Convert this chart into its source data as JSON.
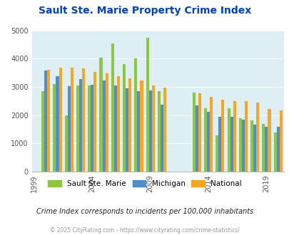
{
  "title": "Sault Ste. Marie Property Crime Index",
  "title_color": "#0044aa",
  "subtitle": "Crime Index corresponds to incidents per 100,000 inhabitants",
  "footer": "© 2025 CityRating.com - https://www.cityrating.com/crime-statistics/",
  "years": [
    2000,
    2001,
    2002,
    2003,
    2004,
    2005,
    2006,
    2007,
    2008,
    2009,
    2010,
    2013,
    2014,
    2015,
    2016,
    2017,
    2018,
    2019,
    2020
  ],
  "sault": [
    2850,
    3100,
    2000,
    3050,
    3050,
    4050,
    4550,
    3800,
    4000,
    4750,
    2850,
    2800,
    2250,
    1280,
    2250,
    1900,
    1820,
    1700,
    1380
  ],
  "michigan": [
    3580,
    3370,
    3030,
    3280,
    3070,
    3230,
    3050,
    2950,
    2840,
    2880,
    2380,
    2350,
    2110,
    1950,
    1940,
    1840,
    1670,
    1580,
    1590
  ],
  "national": [
    3620,
    3680,
    3680,
    3660,
    3530,
    3490,
    3380,
    3310,
    3240,
    3060,
    2980,
    2780,
    2650,
    2560,
    2510,
    2490,
    2440,
    2230,
    2160
  ],
  "bar_colors": {
    "sault": "#8dc63f",
    "michigan": "#4f8fc9",
    "national": "#f5a623"
  },
  "plot_bg": "#ddeef5",
  "ylim": [
    0,
    5000
  ],
  "yticks": [
    0,
    1000,
    2000,
    3000,
    4000,
    5000
  ],
  "legend_labels": [
    "Sault Ste. Marie",
    "Michigan",
    "National"
  ],
  "xtick_labels": [
    "1999",
    "2004",
    "2009",
    "2014",
    "2019"
  ]
}
